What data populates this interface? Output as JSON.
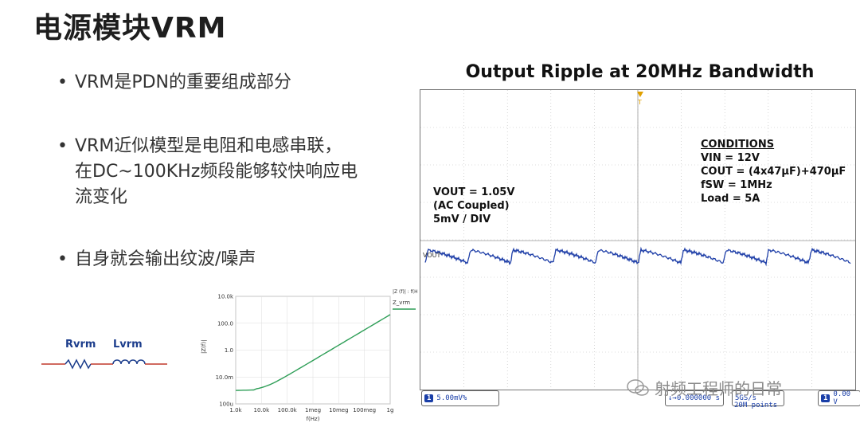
{
  "title": "电源模块VRM",
  "bullets": [
    "VRM是PDN的重要组成部分",
    "VRM近似模型是电阻和电感串联，\n在DC~100KHz频段能够较快响应电\n流变化",
    "自身就会输出纹波/噪声"
  ],
  "circuit": {
    "r_label": "Rvrm",
    "l_label": "Lvrm"
  },
  "zplot": {
    "y_ticks": [
      "10.0k",
      "100.0",
      "1.0",
      "10.0m",
      "100u"
    ],
    "x_ticks": [
      "1.0k",
      "10.0k",
      "100.0k",
      "1meg",
      "10meg",
      "100meg",
      "1g"
    ],
    "xlabel": "f(Hz)",
    "ylabel": "|Z(f)|",
    "legend_header": "|Z (f)| : f(H",
    "legend_series": "Z_vrm",
    "line_color": "#2e9e57"
  },
  "scope": {
    "title": "Output Ripple at 20MHz Bandwidth",
    "trigger_marker": "T",
    "conditions_head": "CONDITIONS",
    "cond_vin": "VIN = 12V",
    "cond_cout": "COUT = (4x47µF)+470µF",
    "cond_fsw": "fSW = 1MHz",
    "cond_load": "Load = 5A",
    "vout_line1": "VOUT = 1.05V",
    "vout_line2": "(AC Coupled)",
    "vout_line3": "5mV / DIV",
    "trace_label": "VOUT",
    "trace_color": "#1f3fa8",
    "status_ch": "1",
    "status_scale": "5.00mV%",
    "status_time": "↓→0.000000 s",
    "status_rate": "5GS/s",
    "status_points": "20M points",
    "status_level": "0.00 V",
    "status_level_ch": "1"
  },
  "watermark": "射频工程师的日常"
}
